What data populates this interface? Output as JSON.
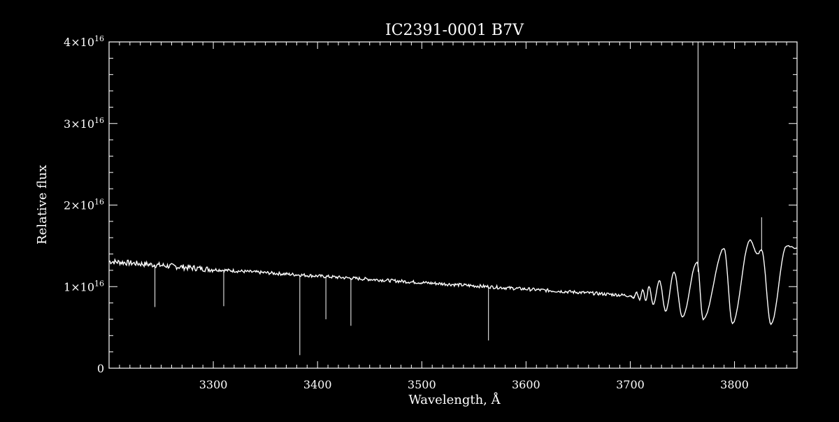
{
  "chart_data": {
    "type": "line",
    "title": "IC2391-0001   B7V",
    "xlabel": "Wavelength, Å",
    "ylabel": "Relative flux",
    "xlim": [
      3200,
      3860
    ],
    "ylim": [
      0,
      4e+16
    ],
    "xticks": [
      3300,
      3400,
      3500,
      3600,
      3700,
      3800
    ],
    "xtick_labels": [
      "3300",
      "3400",
      "3500",
      "3600",
      "3700",
      "3800"
    ],
    "yticks": [
      {
        "value": 0,
        "mantissa": "0",
        "exponent": ""
      },
      {
        "value": 1e+16,
        "mantissa": "1×10",
        "exponent": "16"
      },
      {
        "value": 2e+16,
        "mantissa": "2×10",
        "exponent": "16"
      },
      {
        "value": 3e+16,
        "mantissa": "3×10",
        "exponent": "16"
      },
      {
        "value": 4e+16,
        "mantissa": "4×10",
        "exponent": "16"
      }
    ],
    "grid": false,
    "colors": {
      "background": "#000000",
      "foreground": "#ffffff",
      "line": "#ffffff"
    },
    "continuum": [
      [
        3200,
        1.31e+16
      ],
      [
        3250,
        1.26e+16
      ],
      [
        3300,
        1.21e+16
      ],
      [
        3350,
        1.17e+16
      ],
      [
        3400,
        1.13e+16
      ],
      [
        3450,
        1.09e+16
      ],
      [
        3500,
        1.05e+16
      ],
      [
        3550,
        1.01e+16
      ],
      [
        3600,
        9700000000000000.0
      ],
      [
        3650,
        9300000000000000.0
      ],
      [
        3700,
        8900000000000000.0
      ]
    ],
    "balmer_region": [
      [
        3700,
        8900000000000000.0
      ],
      [
        3703,
        8600000000000000.0
      ],
      [
        3706,
        9300000000000000.0
      ],
      [
        3709,
        8400000000000000.0
      ],
      [
        3712,
        9600000000000000.0
      ],
      [
        3715,
        8300000000000000.0
      ],
      [
        3718,
        1e+16
      ],
      [
        3722,
        7800000000000000.0
      ],
      [
        3728,
        1.07e+16
      ],
      [
        3734,
        7000000000000000.0
      ],
      [
        3742,
        1.18e+16
      ],
      [
        3750,
        6300000000000000.0
      ],
      [
        3764,
        1.3e+16
      ],
      [
        3770,
        6000000000000000.0
      ],
      [
        3790,
        1.47e+16
      ],
      [
        3798,
        5500000000000000.0
      ],
      [
        3815,
        1.57e+16
      ],
      [
        3822,
        1.4e+16
      ],
      [
        3826,
        1.45e+16
      ],
      [
        3835,
        5400000000000000.0
      ],
      [
        3850,
        1.5e+16
      ],
      [
        3860,
        1.47e+16
      ]
    ],
    "absorption_lines": [
      {
        "x": 3244,
        "y": 7500000000000000.0
      },
      {
        "x": 3310,
        "y": 7600000000000000.0
      },
      {
        "x": 3383,
        "y": 1600000000000000.0
      },
      {
        "x": 3408,
        "y": 6000000000000000.0
      },
      {
        "x": 3432,
        "y": 5200000000000000.0
      },
      {
        "x": 3564,
        "y": 3400000000000000.0
      }
    ],
    "emission_spikes": [
      {
        "x": 3765,
        "y": 4e+16
      },
      {
        "x": 3826,
        "y": 1.85e+16
      }
    ]
  }
}
